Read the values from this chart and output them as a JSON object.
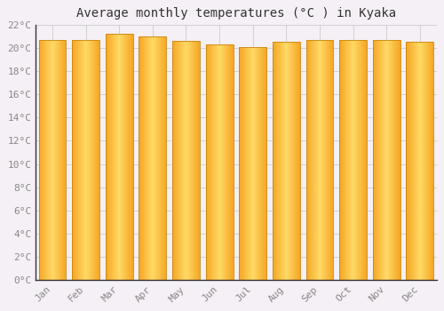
{
  "title": "Average monthly temperatures (°C ) in Kyaka",
  "months": [
    "Jan",
    "Feb",
    "Mar",
    "Apr",
    "May",
    "Jun",
    "Jul",
    "Aug",
    "Sep",
    "Oct",
    "Nov",
    "Dec"
  ],
  "values": [
    20.7,
    20.7,
    21.2,
    21.0,
    20.6,
    20.3,
    20.1,
    20.5,
    20.7,
    20.7,
    20.7,
    20.5
  ],
  "bar_color_left": "#F5A623",
  "bar_color_right": "#FFD966",
  "bar_edge_color": "#C8860A",
  "background_color": "#f5f0f5",
  "plot_bg_color": "#f5f0f5",
  "grid_color": "#cccccc",
  "ylim": [
    0,
    22
  ],
  "ytick_step": 2,
  "title_fontsize": 10,
  "tick_fontsize": 8,
  "tick_color": "#888888",
  "axis_line_color": "#333333"
}
